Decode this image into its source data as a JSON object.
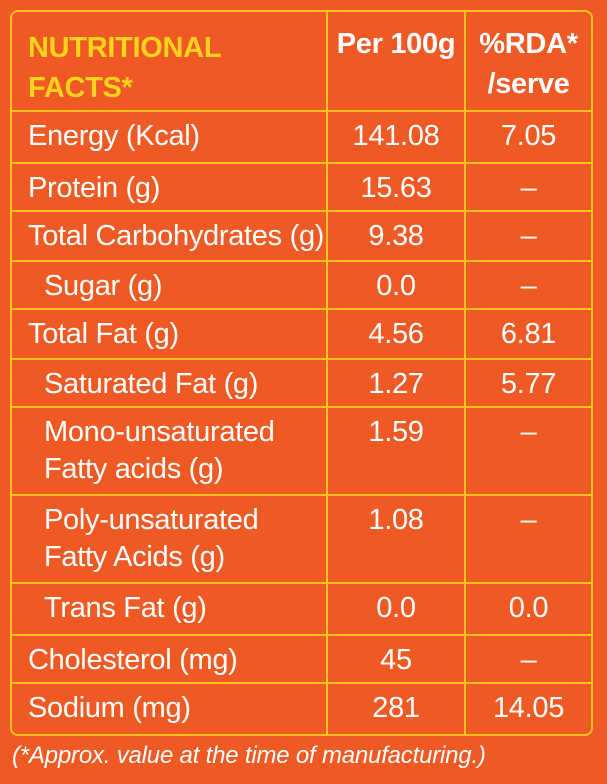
{
  "header": {
    "title": "NUTRITIONAL FACTS*",
    "per_100g": "Per 100g",
    "rda_line1": "%RDA*",
    "rda_line2": "/serve"
  },
  "rows": [
    {
      "name": "Energy (Kcal)",
      "per_100g": "141.08",
      "rda": "7.05"
    },
    {
      "name": "Protein (g)",
      "per_100g": "15.63",
      "rda": "–"
    },
    {
      "name": "Total Carbohydrates (g)",
      "per_100g": "9.38",
      "rda": "–"
    },
    {
      "name": "Sugar (g)",
      "per_100g": "0.0",
      "rda": "–"
    },
    {
      "name": "Total Fat (g)",
      "per_100g": "4.56",
      "rda": "6.81"
    },
    {
      "name": "Saturated Fat (g)",
      "per_100g": "1.27",
      "rda": "5.77"
    },
    {
      "name_line1": "Mono-unsaturated",
      "name_line2": "Fatty acids (g)",
      "per_100g": "1.59",
      "rda": "–"
    },
    {
      "name_line1": "Poly-unsaturated",
      "name_line2": "Fatty Acids (g)",
      "per_100g": "1.08",
      "rda": "–"
    },
    {
      "name": "Trans Fat (g)",
      "per_100g": "0.0",
      "rda": "0.0"
    },
    {
      "name": "Cholesterol (mg)",
      "per_100g": "45",
      "rda": "–"
    },
    {
      "name": "Sodium (mg)",
      "per_100g": "281",
      "rda": "14.05"
    }
  ],
  "footnote": "(*Approx. value at the time of manufacturing.)",
  "colors": {
    "background": "#ef5a24",
    "border": "#f7c31a",
    "title": "#fbd21e",
    "text": "#ffffff"
  }
}
